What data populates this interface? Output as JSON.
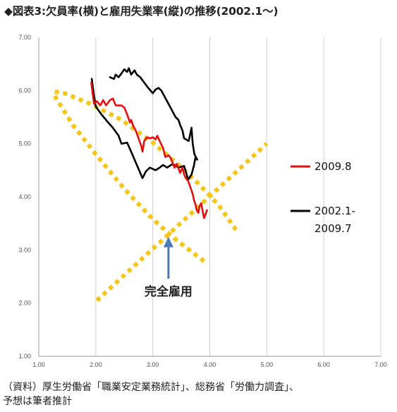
{
  "title": "◆図表3:欠員率(横)と雇用失業率(縦)の推移(2002.1～)",
  "source": {
    "line1": "（資料）厚生労働省「職業安定業務統計」、総務省「労働力調査」、",
    "line2": "予想は筆者推計"
  },
  "colors": {
    "series_recent": "#e01010",
    "series_past": "#000000",
    "guide": "#f5c518",
    "arrow": "#4a7bb7"
  },
  "chart_data": {
    "type": "line",
    "title": "",
    "xlabel": "",
    "ylabel": "",
    "xlim": [
      1.0,
      7.0
    ],
    "ylim": [
      1.0,
      7.0
    ],
    "x_ticks": [
      "1.00",
      "2.00",
      "3.00",
      "4.00",
      "5.00",
      "6.00",
      "7.00"
    ],
    "y_ticks": [
      "1.00",
      "2.00",
      "3.00",
      "4.00",
      "5.00",
      "6.00",
      "7.00"
    ],
    "grid": "vertical",
    "series": [
      {
        "name": "2002.1-\n2009.7",
        "label_lines": [
          "2002.1-",
          "2009.7"
        ],
        "color": "#000000",
        "points": [
          [
            1.93,
            6.22
          ],
          [
            1.95,
            6.05
          ],
          [
            1.97,
            5.9
          ],
          [
            2.0,
            5.7
          ],
          [
            2.1,
            5.55
          ],
          [
            2.2,
            5.42
          ],
          [
            2.3,
            5.3
          ],
          [
            2.4,
            5.15
          ],
          [
            2.45,
            5.0
          ],
          [
            2.55,
            5.02
          ],
          [
            2.62,
            4.85
          ],
          [
            2.7,
            4.65
          ],
          [
            2.78,
            4.45
          ],
          [
            2.82,
            4.35
          ],
          [
            2.88,
            4.48
          ],
          [
            2.95,
            4.55
          ],
          [
            3.05,
            4.5
          ],
          [
            3.12,
            4.55
          ],
          [
            3.18,
            4.6
          ],
          [
            3.25,
            4.55
          ],
          [
            3.35,
            4.62
          ],
          [
            3.45,
            4.55
          ],
          [
            3.55,
            4.58
          ],
          [
            3.6,
            4.4
          ],
          [
            3.62,
            4.32
          ],
          [
            3.68,
            4.42
          ],
          [
            3.72,
            4.58
          ],
          [
            3.75,
            4.75
          ],
          [
            3.78,
            4.7
          ],
          [
            3.73,
            4.8
          ],
          [
            3.7,
            5.0
          ],
          [
            3.68,
            5.3
          ],
          [
            3.63,
            5.05
          ],
          [
            3.55,
            5.1
          ],
          [
            3.52,
            5.25
          ],
          [
            3.48,
            5.35
          ],
          [
            3.45,
            5.45
          ],
          [
            3.4,
            5.5
          ],
          [
            3.35,
            5.6
          ],
          [
            3.3,
            5.7
          ],
          [
            3.25,
            5.8
          ],
          [
            3.2,
            5.9
          ],
          [
            3.15,
            6.0
          ],
          [
            3.1,
            6.05
          ],
          [
            3.05,
            6.02
          ],
          [
            3.0,
            5.95
          ],
          [
            2.92,
            6.05
          ],
          [
            2.85,
            6.15
          ],
          [
            2.78,
            6.25
          ],
          [
            2.72,
            6.3
          ],
          [
            2.68,
            6.38
          ],
          [
            2.62,
            6.3
          ],
          [
            2.58,
            6.42
          ],
          [
            2.55,
            6.35
          ],
          [
            2.5,
            6.4
          ],
          [
            2.45,
            6.32
          ],
          [
            2.4,
            6.25
          ],
          [
            2.35,
            6.3
          ],
          [
            2.32,
            6.22
          ],
          [
            2.25,
            6.25
          ]
        ]
      },
      {
        "name": "2009.8",
        "label_lines": [
          "2009.8"
        ],
        "color": "#e01010",
        "points": [
          [
            1.92,
            6.15
          ],
          [
            1.95,
            5.9
          ],
          [
            1.97,
            5.75
          ],
          [
            2.02,
            5.8
          ],
          [
            2.08,
            5.72
          ],
          [
            2.13,
            5.82
          ],
          [
            2.18,
            5.72
          ],
          [
            2.25,
            5.82
          ],
          [
            2.3,
            5.85
          ],
          [
            2.35,
            5.72
          ],
          [
            2.45,
            5.72
          ],
          [
            2.5,
            5.68
          ],
          [
            2.55,
            5.55
          ],
          [
            2.6,
            5.4
          ],
          [
            2.62,
            5.45
          ],
          [
            2.65,
            5.35
          ],
          [
            2.7,
            5.25
          ],
          [
            2.75,
            5.1
          ],
          [
            2.8,
            4.95
          ],
          [
            2.82,
            4.85
          ],
          [
            2.85,
            5.05
          ],
          [
            2.9,
            5.12
          ],
          [
            2.95,
            5.1
          ],
          [
            3.0,
            5.12
          ],
          [
            3.05,
            5.08
          ],
          [
            3.08,
            5.15
          ],
          [
            3.12,
            5.05
          ],
          [
            3.18,
            4.92
          ],
          [
            3.22,
            4.75
          ],
          [
            3.28,
            4.78
          ],
          [
            3.32,
            4.72
          ],
          [
            3.38,
            4.55
          ],
          [
            3.42,
            4.62
          ],
          [
            3.48,
            4.45
          ],
          [
            3.52,
            4.55
          ],
          [
            3.55,
            4.42
          ],
          [
            3.58,
            4.35
          ],
          [
            3.62,
            4.3
          ],
          [
            3.66,
            4.18
          ],
          [
            3.7,
            4.05
          ],
          [
            3.72,
            3.95
          ],
          [
            3.75,
            3.85
          ],
          [
            3.77,
            3.75
          ],
          [
            3.8,
            3.7
          ],
          [
            3.82,
            3.82
          ],
          [
            3.85,
            3.88
          ],
          [
            3.88,
            3.7
          ],
          [
            3.9,
            3.6
          ],
          [
            3.92,
            3.65
          ],
          [
            3.95,
            3.75
          ]
        ]
      }
    ],
    "guides": [
      {
        "name": "beveridge-curve",
        "points": [
          [
            1.28,
            5.98
          ],
          [
            1.45,
            5.95
          ],
          [
            1.9,
            5.75
          ],
          [
            2.45,
            5.45
          ],
          [
            3.0,
            5.02
          ],
          [
            3.45,
            4.6
          ],
          [
            3.8,
            4.25
          ],
          [
            4.15,
            3.85
          ],
          [
            4.5,
            3.32
          ]
        ]
      },
      {
        "name": "beveridge-curve-lower",
        "points": [
          [
            1.28,
            5.9
          ],
          [
            1.6,
            5.35
          ],
          [
            2.0,
            4.8
          ],
          [
            2.5,
            4.15
          ],
          [
            3.0,
            3.58
          ],
          [
            3.4,
            3.2
          ],
          [
            3.7,
            2.95
          ],
          [
            3.95,
            2.75
          ]
        ]
      },
      {
        "name": "full-employment-line",
        "points": [
          [
            2.02,
            2.05
          ],
          [
            5.0,
            5.0
          ]
        ]
      }
    ],
    "annotations": [
      {
        "text": "完全雇用",
        "points_to": [
          3.3,
          3.25
        ]
      }
    ]
  }
}
